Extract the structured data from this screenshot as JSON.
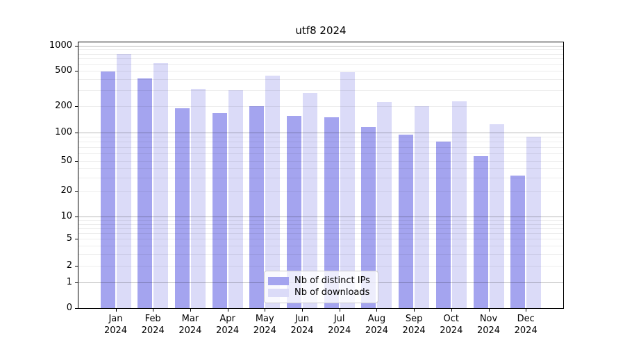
{
  "chart_data": {
    "type": "bar",
    "title": "utf8 2024",
    "categories": [
      "Jan 2024",
      "Feb 2024",
      "Mar 2024",
      "Apr 2024",
      "May 2024",
      "Jun 2024",
      "Jul 2024",
      "Aug 2024",
      "Sep 2024",
      "Oct 2024",
      "Nov 2024",
      "Dec 2024"
    ],
    "series": [
      {
        "name": "Nb of distinct IPs",
        "color": "#a4a4ef",
        "values": [
          485,
          405,
          190,
          165,
          200,
          155,
          150,
          115,
          95,
          80,
          56,
          32
        ]
      },
      {
        "name": "Nb of downloads",
        "color": "#dbdbf8",
        "values": [
          800,
          620,
          310,
          300,
          440,
          280,
          480,
          220,
          200,
          225,
          125,
          90
        ]
      }
    ],
    "xlabel": "",
    "ylabel": "",
    "yscale": "symlog",
    "ylim": [
      0,
      1000
    ],
    "yticks": [
      0,
      1,
      2,
      5,
      10,
      20,
      50,
      100,
      200,
      500,
      1000
    ],
    "grid": true,
    "legend_position": "lower center"
  }
}
